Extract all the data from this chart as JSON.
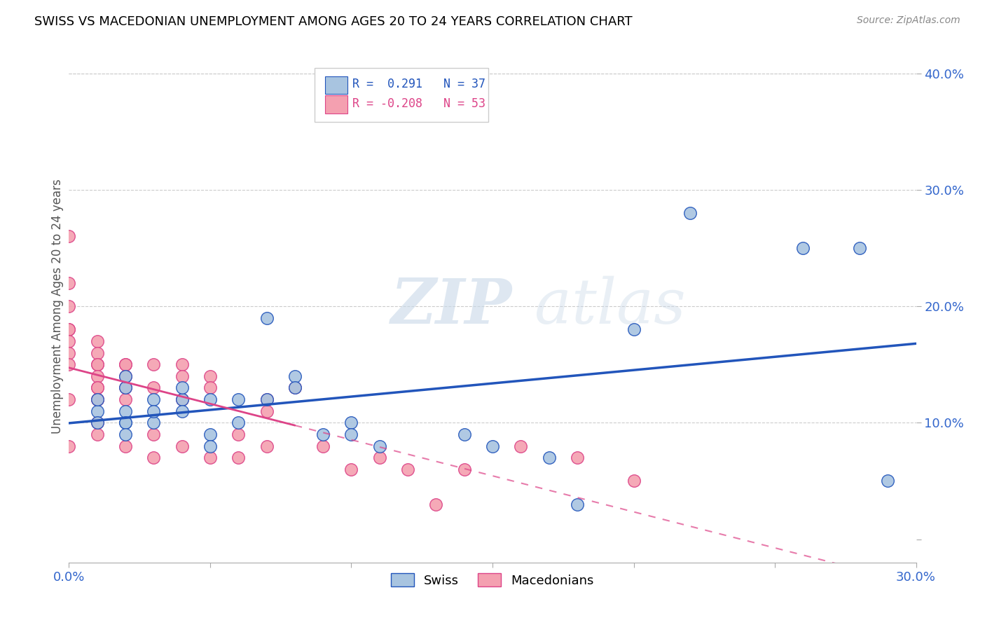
{
  "title": "SWISS VS MACEDONIAN UNEMPLOYMENT AMONG AGES 20 TO 24 YEARS CORRELATION CHART",
  "source": "Source: ZipAtlas.com",
  "ylabel": "Unemployment Among Ages 20 to 24 years",
  "xlim": [
    0.0,
    0.3
  ],
  "ylim": [
    -0.02,
    0.42
  ],
  "swiss_color": "#a8c4e0",
  "macedonian_color": "#f4a0b0",
  "swiss_line_color": "#2255bb",
  "macedonian_line_color": "#dd4488",
  "swiss_R": "0.291",
  "swiss_N": "37",
  "mac_R": "-0.208",
  "mac_N": "53",
  "watermark_zip": "ZIP",
  "watermark_atlas": "atlas",
  "swiss_x": [
    0.01,
    0.01,
    0.01,
    0.02,
    0.02,
    0.02,
    0.02,
    0.02,
    0.02,
    0.03,
    0.03,
    0.03,
    0.04,
    0.04,
    0.04,
    0.05,
    0.05,
    0.05,
    0.06,
    0.06,
    0.07,
    0.07,
    0.08,
    0.08,
    0.09,
    0.1,
    0.1,
    0.11,
    0.14,
    0.15,
    0.17,
    0.18,
    0.2,
    0.22,
    0.26,
    0.28,
    0.29
  ],
  "swiss_y": [
    0.11,
    0.12,
    0.1,
    0.1,
    0.11,
    0.13,
    0.14,
    0.1,
    0.09,
    0.12,
    0.1,
    0.11,
    0.12,
    0.13,
    0.11,
    0.12,
    0.09,
    0.08,
    0.12,
    0.1,
    0.19,
    0.12,
    0.14,
    0.13,
    0.09,
    0.1,
    0.09,
    0.08,
    0.09,
    0.08,
    0.07,
    0.03,
    0.18,
    0.28,
    0.25,
    0.25,
    0.05
  ],
  "mac_x": [
    0.0,
    0.0,
    0.0,
    0.0,
    0.0,
    0.0,
    0.0,
    0.0,
    0.0,
    0.0,
    0.01,
    0.01,
    0.01,
    0.01,
    0.01,
    0.01,
    0.01,
    0.01,
    0.01,
    0.01,
    0.01,
    0.02,
    0.02,
    0.02,
    0.02,
    0.02,
    0.02,
    0.03,
    0.03,
    0.03,
    0.03,
    0.04,
    0.04,
    0.04,
    0.04,
    0.05,
    0.05,
    0.05,
    0.06,
    0.06,
    0.07,
    0.07,
    0.07,
    0.08,
    0.09,
    0.1,
    0.11,
    0.12,
    0.13,
    0.14,
    0.16,
    0.18,
    0.2
  ],
  "mac_y": [
    0.26,
    0.22,
    0.2,
    0.18,
    0.18,
    0.17,
    0.16,
    0.15,
    0.12,
    0.08,
    0.17,
    0.16,
    0.15,
    0.15,
    0.14,
    0.13,
    0.13,
    0.12,
    0.12,
    0.1,
    0.09,
    0.15,
    0.15,
    0.14,
    0.13,
    0.12,
    0.08,
    0.15,
    0.13,
    0.09,
    0.07,
    0.15,
    0.14,
    0.12,
    0.08,
    0.14,
    0.13,
    0.07,
    0.09,
    0.07,
    0.12,
    0.11,
    0.08,
    0.13,
    0.08,
    0.06,
    0.07,
    0.06,
    0.03,
    0.06,
    0.08,
    0.07,
    0.05
  ],
  "ytick_positions": [
    0.0,
    0.1,
    0.2,
    0.3,
    0.4
  ],
  "ytick_labels_right": [
    "",
    "10.0%",
    "20.0%",
    "30.0%",
    "40.0%"
  ],
  "xtick_positions": [
    0.0,
    0.05,
    0.1,
    0.15,
    0.2,
    0.25,
    0.3
  ],
  "xtick_labels": [
    "0.0%",
    "",
    "",
    "",
    "",
    "",
    "30.0%"
  ],
  "grid_color": "#cccccc",
  "tick_color": "#3366cc",
  "label_color": "#555555"
}
